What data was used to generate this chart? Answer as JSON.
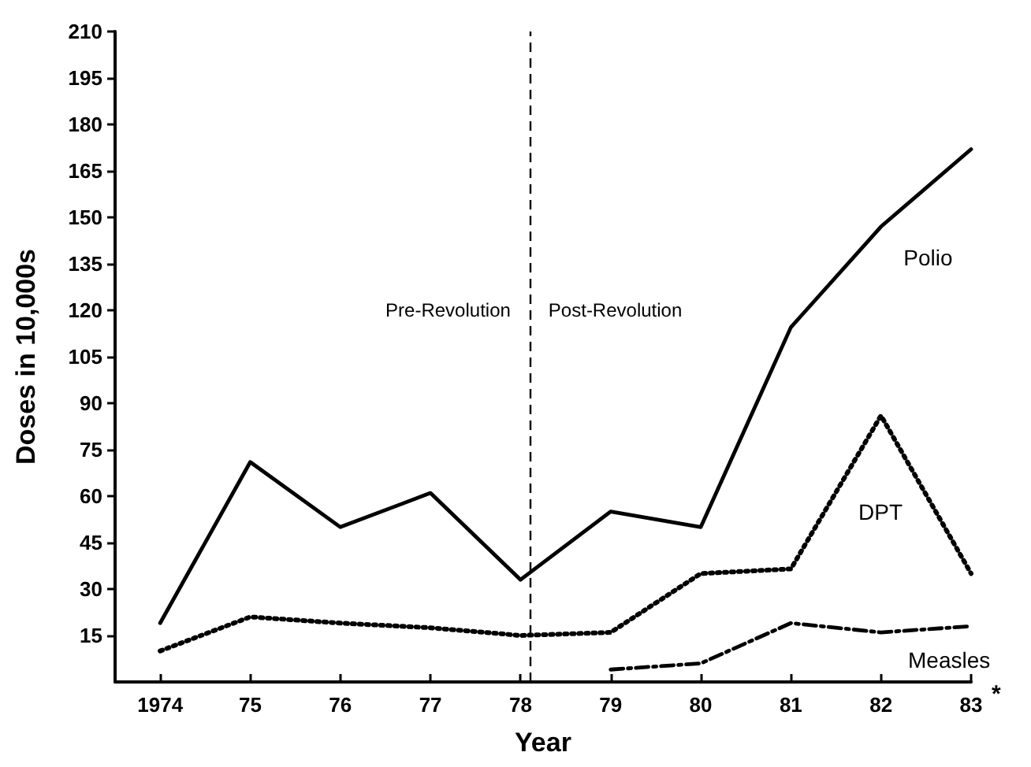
{
  "chart_data": {
    "type": "line",
    "xlabel": "Year",
    "ylabel": "Doses in 10,000s",
    "xlim": [
      1973.5,
      1983
    ],
    "xticks": [
      {
        "value": 1974,
        "label": "1974"
      },
      {
        "value": 1975,
        "label": "75"
      },
      {
        "value": 1976,
        "label": "76"
      },
      {
        "value": 1977,
        "label": "77"
      },
      {
        "value": 1978,
        "label": "78"
      },
      {
        "value": 1979,
        "label": "79"
      },
      {
        "value": 1980,
        "label": "80"
      },
      {
        "value": 1981,
        "label": "81"
      },
      {
        "value": 1982,
        "label": "82"
      },
      {
        "value": 1983,
        "label": "83"
      }
    ],
    "ylim": [
      0,
      210
    ],
    "yticks": [
      15,
      30,
      45,
      60,
      75,
      90,
      105,
      120,
      135,
      150,
      165,
      180,
      195,
      210
    ],
    "grid": false,
    "legend": false,
    "marker": "none",
    "series": [
      {
        "name": "Polio",
        "color": "#000000",
        "line_style": "solid",
        "x": [
          1974,
          1975,
          1976,
          1977,
          1978,
          1979,
          1980,
          1981,
          1982,
          1983
        ],
        "values": [
          19,
          71,
          50,
          61,
          33,
          55,
          50,
          114.5,
          147,
          172
        ]
      },
      {
        "name": "DPT",
        "color": "#000000",
        "line_style": "dotted",
        "x": [
          1974,
          1975,
          1976,
          1977,
          1978,
          1979,
          1980,
          1981,
          1982,
          1983
        ],
        "values": [
          10,
          21,
          19,
          17.5,
          15,
          16,
          35,
          36.5,
          86,
          35
        ]
      },
      {
        "name": "Measles",
        "color": "#000000",
        "line_style": "dashed",
        "x": [
          1979,
          1980,
          1981,
          1982,
          1983
        ],
        "values": [
          4,
          6,
          19,
          16,
          18
        ]
      }
    ],
    "ref_lines": [
      {
        "axis": "x",
        "value": 1978.1,
        "color": "#000000",
        "line_style": "dashed"
      }
    ],
    "annotations": [
      "Pre-Revolution",
      "Post-Revolution",
      "*"
    ]
  }
}
